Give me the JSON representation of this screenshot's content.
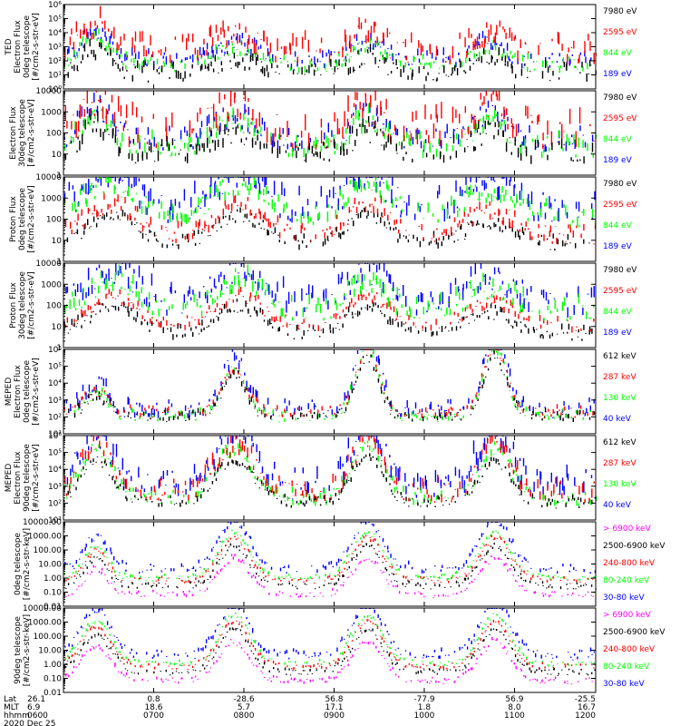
{
  "colors": {
    "black": "#000000",
    "red": "#ff0000",
    "green": "#00ff00",
    "blue": "#0000ff",
    "magenta": "#ff00ff"
  },
  "chart_data": [
    {
      "type": "scatter",
      "ylabel": [
        "TED",
        "Electron Flux",
        "0deg telescope",
        "[#/cm2-s-str-eV]"
      ],
      "yscale": "log",
      "ylim": [
        1,
        1000000
      ],
      "yticks": [
        {
          "v": 1,
          "t": "10⁰"
        },
        {
          "v": 10,
          "t": "10¹"
        },
        {
          "v": 100,
          "t": "10²"
        },
        {
          "v": 1000,
          "t": "10³"
        },
        {
          "v": 10000,
          "t": "10⁴"
        },
        {
          "v": 100000,
          "t": "10⁵"
        },
        {
          "v": 1000000,
          "t": "10⁶"
        }
      ],
      "series": [
        {
          "name": "7980 eV",
          "color": "#000000",
          "level": 1.0,
          "spread": 0.6
        },
        {
          "name": "2595 eV",
          "color": "#ff0000",
          "level": 2.6,
          "spread": 0.9
        },
        {
          "name": "844 eV",
          "color": "#00ff00",
          "level": 1.6,
          "spread": 0.5
        },
        {
          "name": "189 eV",
          "color": "#0000ff",
          "level": 1.9,
          "spread": 0.6
        }
      ],
      "draw_order": [
        3,
        2,
        1,
        0
      ],
      "passes": [
        {
          "c": 0.06,
          "w": 0.04,
          "a": 1.6
        },
        {
          "c": 0.32,
          "w": 0.05,
          "a": 1.0
        },
        {
          "c": 0.57,
          "w": 0.04,
          "a": 1.2
        },
        {
          "c": 0.8,
          "w": 0.04,
          "a": 1.1
        }
      ]
    },
    {
      "type": "scatter",
      "ylabel": [
        "Electron Flux",
        "30deg telescope",
        "[#/cm2-s-str-eV]"
      ],
      "yscale": "log",
      "ylim": [
        1,
        10000
      ],
      "yticks": [
        {
          "v": 1,
          "t": "1"
        },
        {
          "v": 10,
          "t": "10"
        },
        {
          "v": 100,
          "t": "100"
        },
        {
          "v": 1000,
          "t": "1000"
        },
        {
          "v": 10000,
          "t": "10000"
        }
      ],
      "series": [
        {
          "name": "7980 eV",
          "color": "#000000",
          "level": 1.0,
          "spread": 0.5
        },
        {
          "name": "2595 eV",
          "color": "#ff0000",
          "level": 2.0,
          "spread": 0.8
        },
        {
          "name": "844 eV",
          "color": "#00ff00",
          "level": 1.3,
          "spread": 0.5
        },
        {
          "name": "189 eV",
          "color": "#0000ff",
          "level": 1.6,
          "spread": 0.5
        }
      ],
      "draw_order": [
        3,
        2,
        1,
        0
      ],
      "passes": [
        {
          "c": 0.06,
          "w": 0.04,
          "a": 1.2
        },
        {
          "c": 0.32,
          "w": 0.05,
          "a": 0.9
        },
        {
          "c": 0.57,
          "w": 0.04,
          "a": 1.0
        },
        {
          "c": 0.8,
          "w": 0.04,
          "a": 1.0
        }
      ]
    },
    {
      "type": "scatter",
      "ylabel": [
        "Proton Flux",
        "0deg telescope",
        "[#/cm2-s-str-eV]"
      ],
      "yscale": "log",
      "ylim": [
        1,
        10000
      ],
      "yticks": [
        {
          "v": 1,
          "t": "1"
        },
        {
          "v": 10,
          "t": "10"
        },
        {
          "v": 100,
          "t": "100"
        },
        {
          "v": 1000,
          "t": "1000"
        },
        {
          "v": 10000,
          "t": "10000"
        }
      ],
      "series": [
        {
          "name": "7980 eV",
          "color": "#000000",
          "level": 0.8,
          "spread": 0.3
        },
        {
          "name": "2595 eV",
          "color": "#ff0000",
          "level": 1.2,
          "spread": 0.4
        },
        {
          "name": "844 eV",
          "color": "#00ff00",
          "level": 2.1,
          "spread": 0.5
        },
        {
          "name": "189 eV",
          "color": "#0000ff",
          "level": 2.4,
          "spread": 0.7
        }
      ],
      "draw_order": [
        0,
        1,
        3,
        2
      ],
      "passes": [
        {
          "c": 0.09,
          "w": 0.06,
          "a": 1.3
        },
        {
          "c": 0.33,
          "w": 0.06,
          "a": 1.3
        },
        {
          "c": 0.57,
          "w": 0.05,
          "a": 1.4
        },
        {
          "c": 0.8,
          "w": 0.06,
          "a": 1.0
        }
      ]
    },
    {
      "type": "scatter",
      "ylabel": [
        "Proton Flux",
        "30deg telescope",
        "[#/cm2-s-str-eV]"
      ],
      "yscale": "log",
      "ylim": [
        1,
        10000
      ],
      "yticks": [
        {
          "v": 1,
          "t": "1"
        },
        {
          "v": 10,
          "t": "10"
        },
        {
          "v": 100,
          "t": "100"
        },
        {
          "v": 1000,
          "t": "1000"
        },
        {
          "v": 10000,
          "t": "10000"
        }
      ],
      "series": [
        {
          "name": "7980 eV",
          "color": "#000000",
          "level": 0.6,
          "spread": 0.3
        },
        {
          "name": "2595 eV",
          "color": "#ff0000",
          "level": 1.0,
          "spread": 0.3
        },
        {
          "name": "844 eV",
          "color": "#00ff00",
          "level": 1.6,
          "spread": 0.5
        },
        {
          "name": "189 eV",
          "color": "#0000ff",
          "level": 2.0,
          "spread": 0.6
        }
      ],
      "draw_order": [
        0,
        1,
        3,
        2
      ],
      "passes": [
        {
          "c": 0.09,
          "w": 0.06,
          "a": 1.3
        },
        {
          "c": 0.33,
          "w": 0.06,
          "a": 1.3
        },
        {
          "c": 0.57,
          "w": 0.05,
          "a": 1.3
        },
        {
          "c": 0.8,
          "w": 0.06,
          "a": 1.0
        }
      ]
    },
    {
      "type": "scatter",
      "ylabel": [
        "MEPED",
        "Electron Flux",
        "0deg telescope",
        "[#/cm2-s-str-eV]"
      ],
      "yscale": "log",
      "ylim": [
        10,
        1000000
      ],
      "yticks": [
        {
          "v": 10,
          "t": "10¹"
        },
        {
          "v": 100,
          "t": "10²"
        },
        {
          "v": 1000,
          "t": "10³"
        },
        {
          "v": 10000,
          "t": "10⁴"
        },
        {
          "v": 100000,
          "t": "10⁵"
        },
        {
          "v": 1000000,
          "t": "10⁶"
        }
      ],
      "series": [
        {
          "name": "612 keV",
          "color": "#000000",
          "level": 2.0,
          "spread": 0.3
        },
        {
          "name": "287 keV",
          "color": "#ff0000",
          "level": 2.2,
          "spread": 0.3
        },
        {
          "name": "130 keV",
          "color": "#00ff00",
          "level": 2.0,
          "spread": 0.3
        },
        {
          "name": "40 keV",
          "color": "#0000ff",
          "level": 2.4,
          "spread": 0.5
        }
      ],
      "draw_order": [
        3,
        2,
        1,
        0
      ],
      "passes": [
        {
          "c": 0.06,
          "w": 0.03,
          "a": 1.2
        },
        {
          "c": 0.32,
          "w": 0.03,
          "a": 2.5
        },
        {
          "c": 0.57,
          "w": 0.03,
          "a": 3.5
        },
        {
          "c": 0.81,
          "w": 0.03,
          "a": 3.5
        }
      ]
    },
    {
      "type": "scatter",
      "ylabel": [
        "MEPED",
        "Electron Flux",
        "90deg telescope",
        "[#/cm2-s-str-eV]"
      ],
      "yscale": "log",
      "ylim": [
        10,
        1000000
      ],
      "yticks": [
        {
          "v": 10,
          "t": "10¹"
        },
        {
          "v": 100,
          "t": "10²"
        },
        {
          "v": 1000,
          "t": "10³"
        },
        {
          "v": 10000,
          "t": "10⁴"
        },
        {
          "v": 100000,
          "t": "10⁵"
        },
        {
          "v": 1000000,
          "t": "10⁶"
        }
      ],
      "series": [
        {
          "name": "612 keV",
          "color": "#000000",
          "level": 2.0,
          "spread": 0.3
        },
        {
          "name": "287 keV",
          "color": "#ff0000",
          "level": 2.6,
          "spread": 0.6
        },
        {
          "name": "130 keV",
          "color": "#00ff00",
          "level": 2.2,
          "spread": 0.4
        },
        {
          "name": "40 keV",
          "color": "#0000ff",
          "level": 3.0,
          "spread": 0.8
        }
      ],
      "draw_order": [
        3,
        2,
        1,
        0
      ],
      "passes": [
        {
          "c": 0.06,
          "w": 0.04,
          "a": 2.5
        },
        {
          "c": 0.32,
          "w": 0.05,
          "a": 2.5
        },
        {
          "c": 0.57,
          "w": 0.04,
          "a": 2.8
        },
        {
          "c": 0.81,
          "w": 0.04,
          "a": 2.5
        }
      ]
    },
    {
      "type": "scatter",
      "ylabel": [
        "0deg telescope",
        "[#/cm2-s-str-keV]"
      ],
      "yscale": "log",
      "ylim": [
        0.01,
        10000
      ],
      "yticks": [
        {
          "v": 0.01,
          "t": "0.01"
        },
        {
          "v": 0.1,
          "t": "0.10"
        },
        {
          "v": 1,
          "t": "1.00"
        },
        {
          "v": 10,
          "t": "10.00"
        },
        {
          "v": 100,
          "t": "100.00"
        },
        {
          "v": 1000,
          "t": "1000.00"
        },
        {
          "v": 10000,
          "t": "10000.00"
        }
      ],
      "series": [
        {
          "name": "> 6900 keV",
          "color": "#ff00ff",
          "level": -1.2,
          "spread": 0.2
        },
        {
          "name": "2500-6900 keV",
          "color": "#000000",
          "level": -0.6,
          "spread": 0.2
        },
        {
          "name": "240-800 keV",
          "color": "#ff0000",
          "level": -0.2,
          "spread": 0.2
        },
        {
          "name": "80-240 keV",
          "color": "#00ff00",
          "level": 0.0,
          "spread": 0.2
        },
        {
          "name": "30-80 keV",
          "color": "#0000ff",
          "level": 0.6,
          "spread": 0.3
        }
      ],
      "draw_order": [
        4,
        3,
        2,
        1,
        0
      ],
      "passes": [
        {
          "c": 0.06,
          "w": 0.03,
          "a": 1.8
        },
        {
          "c": 0.32,
          "w": 0.04,
          "a": 2.6
        },
        {
          "c": 0.57,
          "w": 0.04,
          "a": 2.6
        },
        {
          "c": 0.81,
          "w": 0.04,
          "a": 2.6
        }
      ]
    },
    {
      "type": "scatter",
      "ylabel": [
        "90deg telescope",
        "[#/cm2-s-str-keV]"
      ],
      "yscale": "log",
      "ylim": [
        0.01,
        10000
      ],
      "yticks": [
        {
          "v": 0.01,
          "t": "0.01"
        },
        {
          "v": 0.1,
          "t": "0.10"
        },
        {
          "v": 1,
          "t": "1.00"
        },
        {
          "v": 10,
          "t": "10.00"
        },
        {
          "v": 100,
          "t": "100.00"
        },
        {
          "v": 1000,
          "t": "1000.00"
        },
        {
          "v": 10000,
          "t": "10000.00"
        }
      ],
      "series": [
        {
          "name": "> 6900 keV",
          "color": "#ff00ff",
          "level": -1.2,
          "spread": 0.2
        },
        {
          "name": "2500-6900 keV",
          "color": "#000000",
          "level": -0.6,
          "spread": 0.2
        },
        {
          "name": "240-800 keV",
          "color": "#ff0000",
          "level": -0.2,
          "spread": 0.2
        },
        {
          "name": "80-240 keV",
          "color": "#00ff00",
          "level": 0.0,
          "spread": 0.2
        },
        {
          "name": "30-80 keV",
          "color": "#0000ff",
          "level": 0.6,
          "spread": 0.3
        }
      ],
      "draw_order": [
        4,
        3,
        2,
        1,
        0
      ],
      "passes": [
        {
          "c": 0.06,
          "w": 0.04,
          "a": 2.4
        },
        {
          "c": 0.32,
          "w": 0.04,
          "a": 2.8
        },
        {
          "c": 0.57,
          "w": 0.04,
          "a": 2.8
        },
        {
          "c": 0.81,
          "w": 0.04,
          "a": 2.8
        }
      ]
    }
  ],
  "x_axis": {
    "row_labels": [
      "Lat",
      "MLT",
      "hhmm",
      "2020 Dec 25"
    ],
    "ticks": [
      {
        "pos": 0.0,
        "lat": "26.1",
        "mlt": "6.9",
        "hhmm": "0600"
      },
      {
        "pos": 0.2,
        "lat": "0.8",
        "mlt": "18.6",
        "hhmm": "0700"
      },
      {
        "pos": 0.4,
        "lat": "-28.6",
        "mlt": "5.7",
        "hhmm": "0800"
      },
      {
        "pos": 0.6,
        "lat": "56.8",
        "mlt": "17.1",
        "hhmm": "0900"
      },
      {
        "pos": 0.8,
        "lat": "-77.9",
        "mlt": "1.8",
        "hhmm": "1000"
      },
      {
        "pos": 1.0,
        "lat": "56.9",
        "mlt": "8.0",
        "hhmm": "1100"
      }
    ],
    "end_tick": {
      "pos": 1.18,
      "lat": "-25.5",
      "mlt": "16.7",
      "hhmm": "1200"
    }
  }
}
